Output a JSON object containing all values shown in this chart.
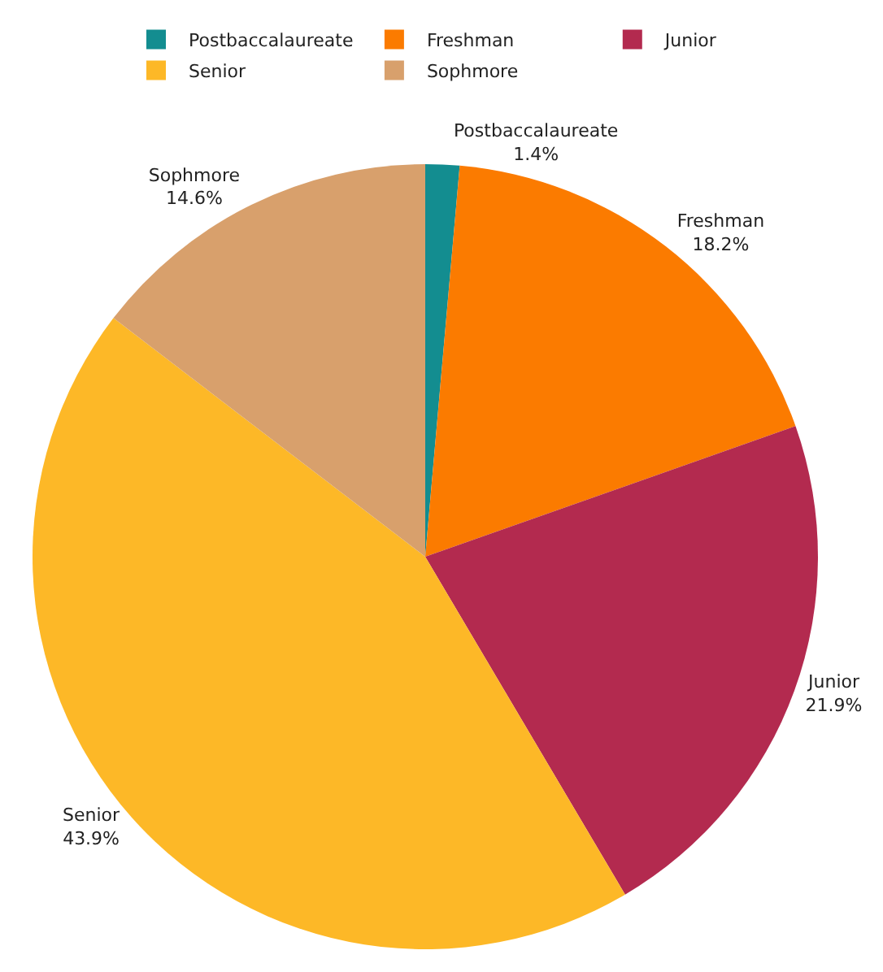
{
  "chart_data": {
    "type": "pie",
    "categories": [
      "Postbaccalaureate",
      "Freshman",
      "Junior",
      "Senior",
      "Sophmore"
    ],
    "values": [
      1.4,
      18.2,
      21.9,
      43.9,
      14.6
    ],
    "value_labels": [
      "1.4%",
      "18.2%",
      "21.9%",
      "43.9%",
      "14.6%"
    ],
    "colors": [
      "#138d90",
      "#fb7b00",
      "#b32a4f",
      "#fdb827",
      "#d8a06c"
    ],
    "legend": "top"
  }
}
